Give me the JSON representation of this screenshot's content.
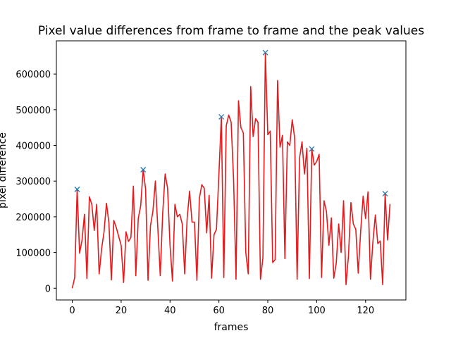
{
  "chart_data": {
    "type": "line",
    "title": "Pixel value differences from frame to frame and the peak values",
    "xlabel": "frames",
    "ylabel": "pixel difference",
    "xlim": [
      -6.5,
      136.5
    ],
    "ylim": [
      -33000,
      693000
    ],
    "xticks": [
      0,
      20,
      40,
      60,
      80,
      100,
      120
    ],
    "yticks": [
      0,
      100000,
      200000,
      300000,
      400000,
      500000,
      600000
    ],
    "xtick_labels": [
      "0",
      "20",
      "40",
      "60",
      "80",
      "100",
      "120"
    ],
    "ytick_labels": [
      "0",
      "100000",
      "200000",
      "300000",
      "400000",
      "500000",
      "600000"
    ],
    "grid": false,
    "series": [
      {
        "name": "",
        "color": "#e41a1c",
        "style": "line",
        "x": [
          0,
          1,
          2,
          3,
          4,
          5,
          6,
          7,
          8,
          9,
          10,
          11,
          12,
          13,
          14,
          15,
          16,
          17,
          18,
          19,
          20,
          21,
          22,
          23,
          24,
          25,
          26,
          27,
          28,
          29,
          30,
          31,
          32,
          33,
          34,
          35,
          36,
          37,
          38,
          39,
          40,
          41,
          42,
          43,
          44,
          45,
          46,
          47,
          48,
          49,
          50,
          51,
          52,
          53,
          54,
          55,
          56,
          57,
          58,
          59,
          60,
          61,
          62,
          63,
          64,
          65,
          66,
          67,
          68,
          69,
          70,
          71,
          72,
          73,
          74,
          75,
          76,
          77,
          78,
          79,
          80,
          81,
          82,
          83,
          84,
          85,
          86,
          87,
          88,
          89,
          90,
          91,
          92,
          93,
          94,
          95,
          96,
          97,
          98,
          99,
          100,
          101,
          102,
          103,
          104,
          105,
          106,
          107,
          108,
          109,
          110,
          111,
          112,
          113,
          114,
          115,
          116,
          117,
          118,
          119,
          120,
          121,
          122,
          123,
          124,
          125,
          126,
          127,
          128,
          129,
          130
        ],
        "y": [
          0,
          30000,
          277000,
          98000,
          135000,
          207000,
          27000,
          256000,
          235000,
          162000,
          235000,
          40000,
          110000,
          158000,
          238000,
          183000,
          23000,
          190000,
          170000,
          145000,
          120000,
          16000,
          158000,
          131000,
          142000,
          286000,
          35000,
          195000,
          231000,
          332000,
          278000,
          22000,
          175000,
          216000,
          300000,
          170000,
          35000,
          210000,
          320000,
          280000,
          120000,
          20000,
          235000,
          200000,
          207000,
          180000,
          40000,
          195000,
          272000,
          185000,
          185000,
          22000,
          252000,
          290000,
          280000,
          155000,
          260000,
          28000,
          150000,
          165000,
          320000,
          480000,
          30000,
          455000,
          485000,
          465000,
          305000,
          25000,
          525000,
          450000,
          435000,
          100000,
          40000,
          565000,
          425000,
          475000,
          465000,
          25000,
          85000,
          660000,
          430000,
          440000,
          72000,
          80000,
          582000,
          395000,
          428000,
          83000,
          410000,
          400000,
          472000,
          420000,
          25000,
          365000,
          410000,
          320000,
          392000,
          27000,
          390000,
          345000,
          355000,
          375000,
          30000,
          245000,
          215000,
          120000,
          197000,
          28000,
          70000,
          180000,
          100000,
          245000,
          10000,
          90000,
          240000,
          180000,
          165000,
          42000,
          160000,
          258000,
          195000,
          270000,
          25000,
          130000,
          205000,
          125000,
          132000,
          10000,
          265000,
          135000,
          236000
        ]
      },
      {
        "name": "",
        "color": "#1f77b4",
        "style": "marker-x",
        "x": [
          2,
          29,
          61,
          79,
          98,
          128
        ],
        "y": [
          277000,
          332000,
          480000,
          660000,
          390000,
          265000
        ]
      }
    ]
  }
}
